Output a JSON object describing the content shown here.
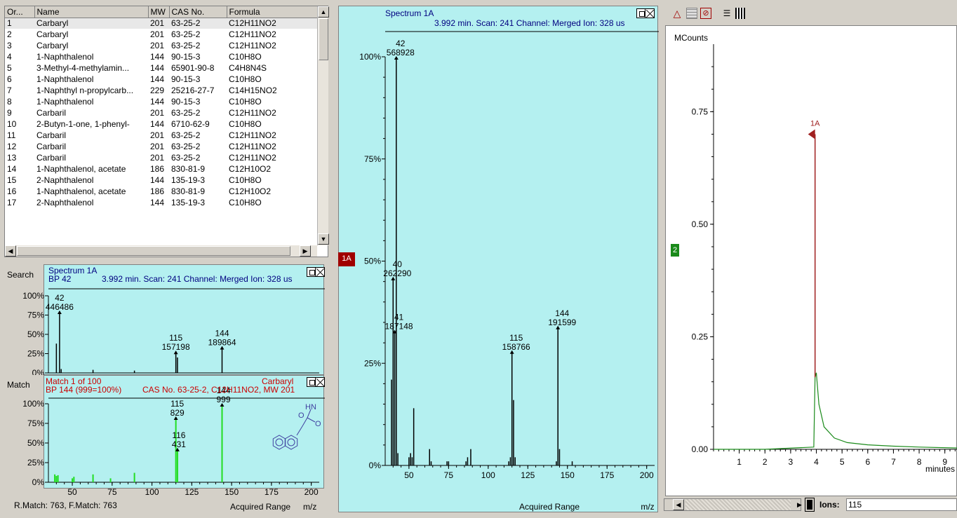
{
  "table": {
    "headers": [
      "Or...",
      "Name",
      "MW",
      "CAS No.",
      "Formula"
    ],
    "rows": [
      [
        "1",
        "Carbaryl",
        "201",
        "63-25-2",
        "C12H11NO2"
      ],
      [
        "2",
        "Carbaryl",
        "201",
        "63-25-2",
        "C12H11NO2"
      ],
      [
        "3",
        "Carbaryl",
        "201",
        "63-25-2",
        "C12H11NO2"
      ],
      [
        "4",
        "1-Naphthalenol",
        "144",
        "90-15-3",
        "C10H8O"
      ],
      [
        "5",
        "3-Methyl-4-methylamin...",
        "144",
        "65901-90-8",
        "C4H8N4S"
      ],
      [
        "6",
        "1-Naphthalenol",
        "144",
        "90-15-3",
        "C10H8O"
      ],
      [
        "7",
        "1-Naphthyl n-propylcarb...",
        "229",
        "25216-27-7",
        "C14H15NO2"
      ],
      [
        "8",
        "1-Naphthalenol",
        "144",
        "90-15-3",
        "C10H8O"
      ],
      [
        "9",
        "Carbaril",
        "201",
        "63-25-2",
        "C12H11NO2"
      ],
      [
        "10",
        "2-Butyn-1-one, 1-phenyl-",
        "144",
        "6710-62-9",
        "C10H8O"
      ],
      [
        "11",
        "Carbaril",
        "201",
        "63-25-2",
        "C12H11NO2"
      ],
      [
        "12",
        "Carbaril",
        "201",
        "63-25-2",
        "C12H11NO2"
      ],
      [
        "13",
        "Carbaril",
        "201",
        "63-25-2",
        "C12H11NO2"
      ],
      [
        "14",
        "1-Naphthalenol, acetate",
        "186",
        "830-81-9",
        "C12H10O2"
      ],
      [
        "15",
        "2-Naphthalenol",
        "144",
        "135-19-3",
        "C10H8O"
      ],
      [
        "16",
        "1-Naphthalenol, acetate",
        "186",
        "830-81-9",
        "C12H10O2"
      ],
      [
        "17",
        "2-Naphthalenol",
        "144",
        "135-19-3",
        "C10H8O"
      ]
    ]
  },
  "search_panel": {
    "side_label": "Search",
    "title": "Spectrum 1A",
    "bp": "BP 42",
    "info": "3.992 min. Scan: 241 Channel: Merged Ion: 328 us",
    "y_ticks": [
      "100%",
      "75%",
      "50%",
      "25%",
      "0%"
    ]
  },
  "match_panel": {
    "side_label": "Match",
    "title": "Match 1 of 100",
    "compound": "Carbaryl",
    "bp": "BP 144 (999=100%)",
    "info": "CAS No. 63-25-2, C12H11NO2, MW 201",
    "footer": "R.Match: 763, F.Match: 763",
    "acquired": "Acquired Range",
    "unit": "m/z",
    "y_ticks": [
      "100%",
      "75%",
      "50%",
      "25%",
      "0%"
    ],
    "x_ticks": [
      "50",
      "75",
      "100",
      "125",
      "150",
      "175",
      "200"
    ],
    "struct_label_hn": "HN",
    "struct_label_o": "O"
  },
  "spectrum_panel": {
    "title": "Spectrum 1A",
    "info": "3.992 min. Scan: 241 Channel: Merged Ion: 328 us",
    "tag": "1A",
    "y_ticks": [
      "100%",
      "75%",
      "50%",
      "25%",
      "0%"
    ],
    "x_ticks": [
      "50",
      "75",
      "100",
      "125",
      "150",
      "175",
      "200"
    ],
    "acquired": "Acquired Range",
    "unit": "m/z"
  },
  "chromatogram": {
    "ylabel": "MCounts",
    "tag": "2",
    "peak_label": "1A",
    "y_ticks": [
      "0.75",
      "0.50",
      "0.25",
      "0.00"
    ],
    "x_ticks": [
      "1",
      "2",
      "3",
      "4",
      "5",
      "6",
      "7",
      "8",
      "9"
    ],
    "xlabel": "minutes",
    "ions_label": "Ions:",
    "ions_value": "115"
  },
  "chart_data": [
    {
      "type": "bar",
      "title": "Spectrum 1A",
      "xlabel": "m/z",
      "xlim": [
        35,
        205
      ],
      "ylim": [
        0,
        100
      ],
      "peaks": [
        {
          "x": 39,
          "y": 21
        },
        {
          "x": 40,
          "y": 46
        },
        {
          "x": 41,
          "y": 33
        },
        {
          "x": 42,
          "y": 100
        },
        {
          "x": 43,
          "y": 3
        },
        {
          "x": 50,
          "y": 2
        },
        {
          "x": 51,
          "y": 3
        },
        {
          "x": 52,
          "y": 2
        },
        {
          "x": 53,
          "y": 14
        },
        {
          "x": 63,
          "y": 4
        },
        {
          "x": 64,
          "y": 1
        },
        {
          "x": 74,
          "y": 1
        },
        {
          "x": 75,
          "y": 1
        },
        {
          "x": 86,
          "y": 1
        },
        {
          "x": 87,
          "y": 2
        },
        {
          "x": 89,
          "y": 4
        },
        {
          "x": 113,
          "y": 1
        },
        {
          "x": 114,
          "y": 2
        },
        {
          "x": 115,
          "y": 28
        },
        {
          "x": 116,
          "y": 16
        },
        {
          "x": 117,
          "y": 2
        },
        {
          "x": 143,
          "y": 1
        },
        {
          "x": 144,
          "y": 34
        },
        {
          "x": 145,
          "y": 4
        },
        {
          "x": 153,
          "y": 1
        }
      ],
      "labels": [
        {
          "x": 42,
          "mz": "42",
          "abundance": "568928"
        },
        {
          "x": 40,
          "mz": "40",
          "abundance": "262290"
        },
        {
          "x": 41,
          "mz": "41",
          "abundance": "187148"
        },
        {
          "x": 115,
          "mz": "115",
          "abundance": "158766"
        },
        {
          "x": 144,
          "mz": "144",
          "abundance": "191599"
        }
      ]
    },
    {
      "type": "bar",
      "title": "Spectrum 1A",
      "xlabel": "m/z",
      "xlim": [
        35,
        205
      ],
      "ylim": [
        0,
        100
      ],
      "peaks": [
        {
          "x": 40,
          "y": 38
        },
        {
          "x": 42,
          "y": 80
        },
        {
          "x": 43,
          "y": 5
        },
        {
          "x": 63,
          "y": 4
        },
        {
          "x": 89,
          "y": 3
        },
        {
          "x": 115,
          "y": 28
        },
        {
          "x": 116,
          "y": 20
        },
        {
          "x": 144,
          "y": 34
        }
      ],
      "labels": [
        {
          "x": 42,
          "mz": "42",
          "abundance": "446486"
        },
        {
          "x": 115,
          "mz": "115",
          "abundance": "157198"
        },
        {
          "x": 144,
          "mz": "144",
          "abundance": "189864"
        }
      ]
    },
    {
      "type": "bar",
      "title": "Match 1 of 100",
      "xlabel": "m/z",
      "xlim": [
        35,
        205
      ],
      "ylim": [
        0,
        100
      ],
      "peaks": [
        {
          "x": 39,
          "y": 10
        },
        {
          "x": 40,
          "y": 8
        },
        {
          "x": 41,
          "y": 9
        },
        {
          "x": 50,
          "y": 5
        },
        {
          "x": 51,
          "y": 7
        },
        {
          "x": 63,
          "y": 10
        },
        {
          "x": 74,
          "y": 5
        },
        {
          "x": 89,
          "y": 12
        },
        {
          "x": 115,
          "y": 83
        },
        {
          "x": 116,
          "y": 43
        },
        {
          "x": 144,
          "y": 100
        }
      ],
      "labels": [
        {
          "x": 115,
          "mz": "115",
          "abundance": "829"
        },
        {
          "x": 116,
          "mz": "116",
          "abundance": "431"
        },
        {
          "x": 144,
          "mz": "144",
          "abundance": "999"
        }
      ]
    },
    {
      "type": "line",
      "title": "",
      "xlabel": "minutes",
      "ylabel": "MCounts",
      "xlim": [
        0,
        9.5
      ],
      "ylim": [
        0,
        0.9
      ],
      "x": [
        0,
        2,
        3.9,
        3.95,
        4.0,
        4.1,
        4.3,
        4.7,
        5.2,
        6,
        7,
        8,
        9.5
      ],
      "y": [
        0.0,
        0.0,
        0.005,
        0.16,
        0.17,
        0.1,
        0.05,
        0.025,
        0.015,
        0.01,
        0.007,
        0.005,
        0.003
      ]
    }
  ],
  "toolbar_icons": [
    "peak-icon",
    "grid-icon",
    "no-peak-icon",
    "list-icon",
    "table-icon"
  ]
}
